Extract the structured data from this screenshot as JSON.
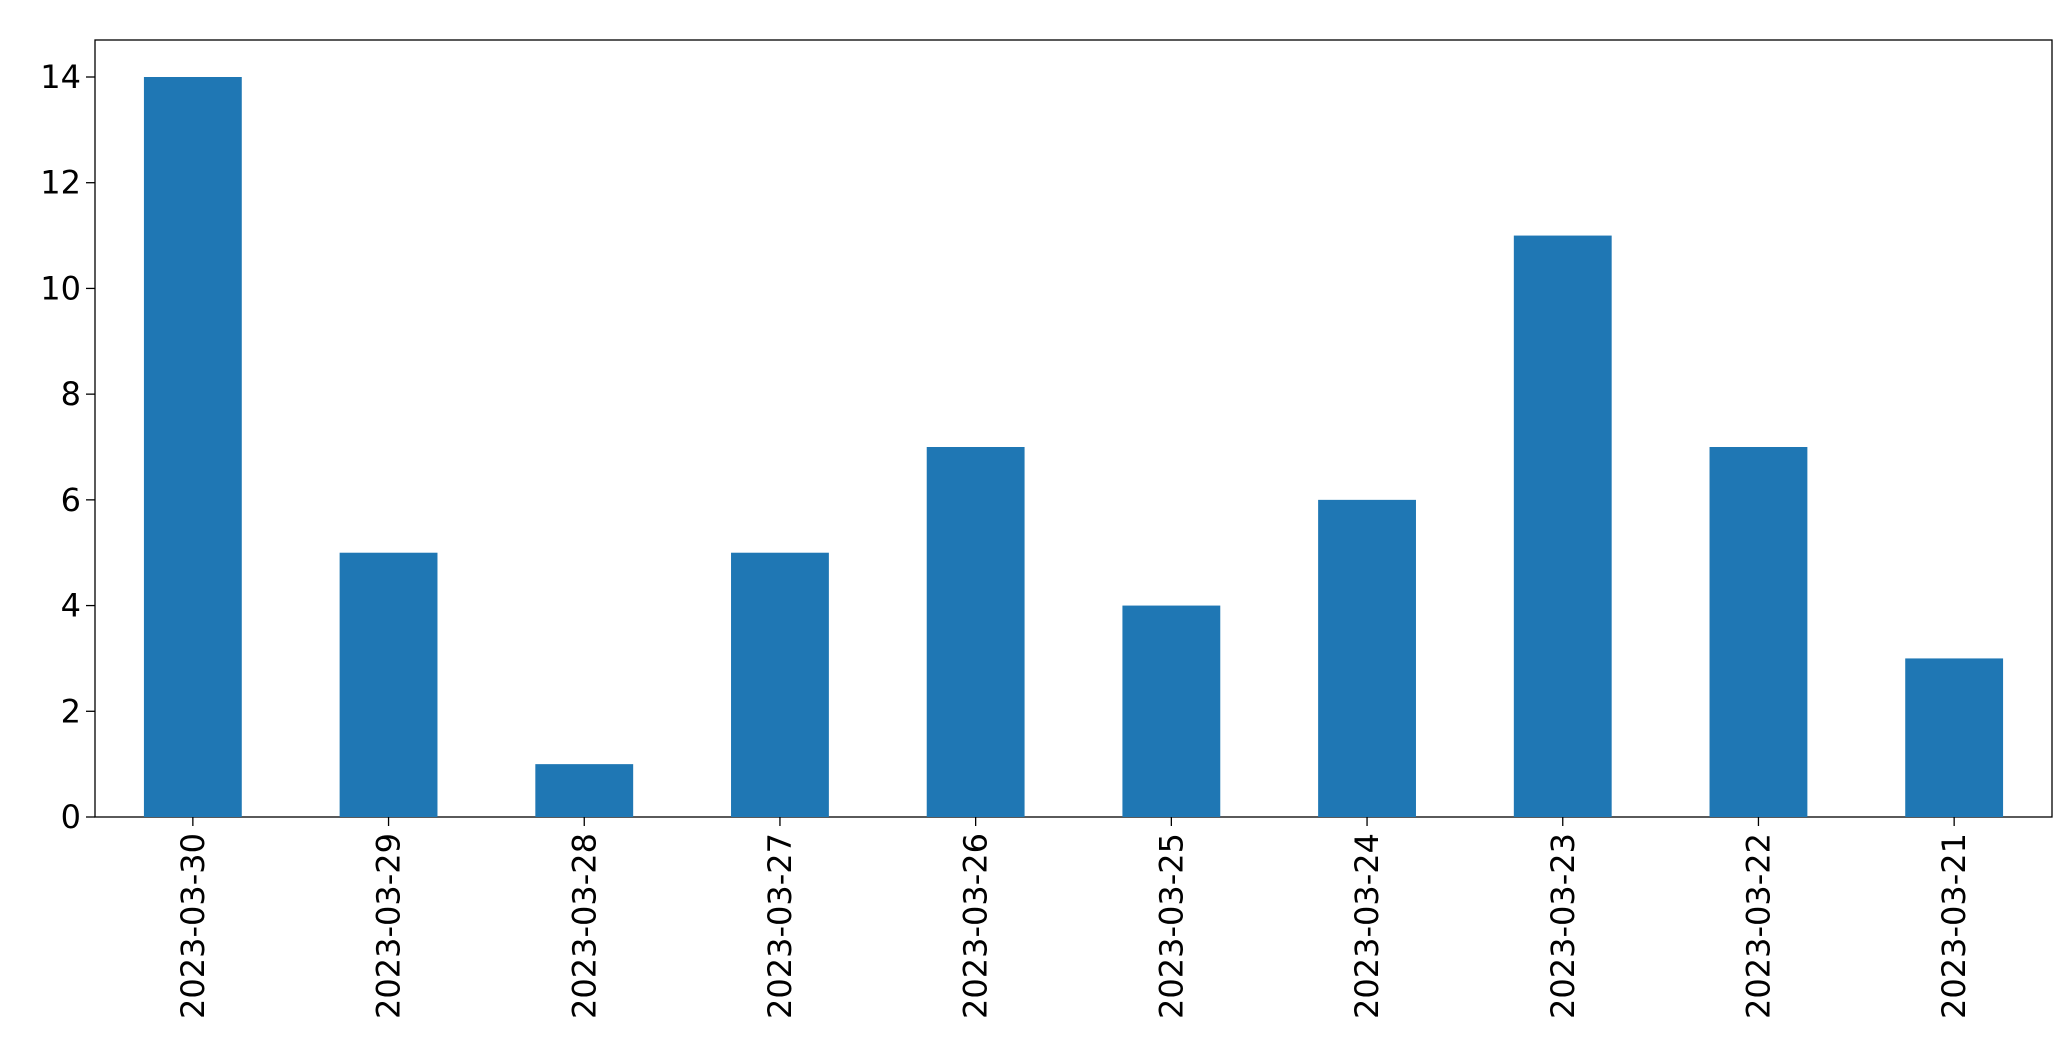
{
  "chart_data": {
    "type": "bar",
    "categories": [
      "2023-03-30",
      "2023-03-29",
      "2023-03-28",
      "2023-03-27",
      "2023-03-26",
      "2023-03-25",
      "2023-03-24",
      "2023-03-23",
      "2023-03-22",
      "2023-03-21"
    ],
    "values": [
      14,
      5,
      1,
      5,
      7,
      4,
      6,
      11,
      7,
      3
    ],
    "color": "#1f77b4",
    "ylim": [
      0,
      14.7
    ],
    "yticks": [
      0,
      2,
      4,
      6,
      8,
      10,
      12,
      14
    ],
    "grid": false
  }
}
